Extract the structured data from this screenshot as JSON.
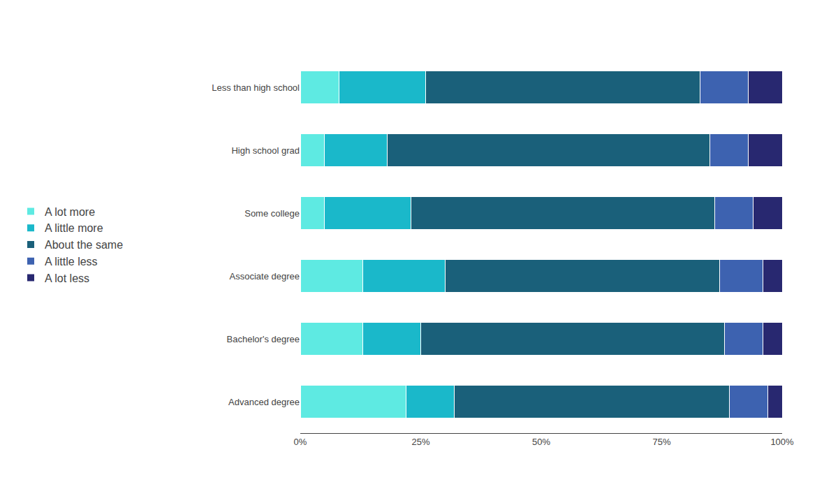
{
  "chart_data": {
    "type": "bar",
    "orientation": "horizontal",
    "stacked": true,
    "categories": [
      "Less than high school",
      "High school grad",
      "Some college",
      "Associate degree",
      "Bachelor's degree",
      "Advanced degree"
    ],
    "series": [
      {
        "name": "A lot more",
        "color": "#5EEAE2",
        "values": [
          8,
          5,
          5,
          13,
          13,
          22
        ]
      },
      {
        "name": "A little more",
        "color": "#1AB8CA",
        "values": [
          18,
          13,
          18,
          17,
          12,
          10
        ]
      },
      {
        "name": "About the same",
        "color": "#1A607A",
        "values": [
          57,
          67,
          63,
          57,
          63,
          57
        ]
      },
      {
        "name": "A little less",
        "color": "#3D62B0",
        "values": [
          10,
          8,
          8,
          9,
          8,
          8
        ]
      },
      {
        "name": "A lot less",
        "color": "#282870",
        "values": [
          7,
          7,
          6,
          4,
          4,
          3
        ]
      }
    ],
    "xlim": [
      0,
      100
    ],
    "xticks": [
      {
        "value": 0,
        "label": "0%"
      },
      {
        "value": 25,
        "label": "25%"
      },
      {
        "value": 50,
        "label": "50%"
      },
      {
        "value": 75,
        "label": "75%"
      },
      {
        "value": 100,
        "label": "100%"
      }
    ],
    "grid": false,
    "legend": "left"
  }
}
